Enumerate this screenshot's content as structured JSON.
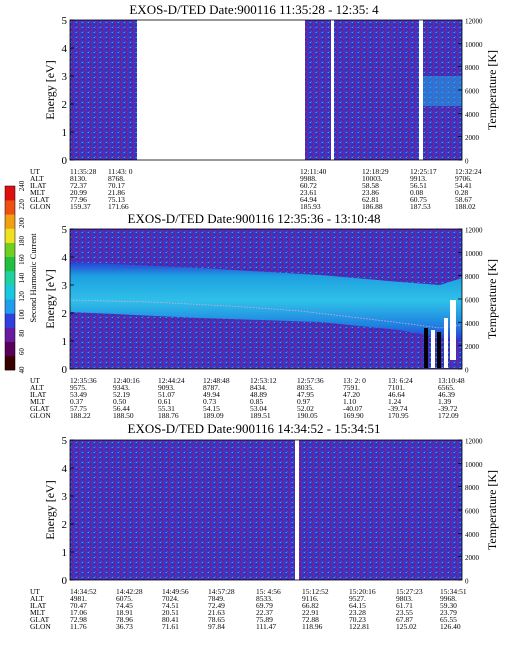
{
  "chart_data": [
    {
      "type": "heatmap",
      "title": "EXOS-D/TED   Date:900116  11:35:28 - 12:35: 4",
      "ylabel": "Energy [eV]",
      "y2label": "Temperature [K]",
      "ylim": [
        0,
        5
      ],
      "y2lim": [
        0,
        12000
      ],
      "yticks": [
        "0",
        "1",
        "2",
        "3",
        "4",
        "5"
      ],
      "y2ticks": [
        "0",
        "2000",
        "4000",
        "6000",
        "8000",
        "10000",
        "12000"
      ],
      "orbit_labels": [
        "UT",
        "ALT",
        "ILAT",
        "MLT",
        "GLAT",
        "GLON"
      ],
      "orbit_columns": [
        [
          "11:35:28",
          "8130.",
          "72.37",
          "20.99",
          "77.96",
          "159.37"
        ],
        [
          "11:43: 0",
          "8768.",
          "70.17",
          "21.86",
          "75.13",
          "171.66"
        ],
        [
          "12:11:40",
          "9988.",
          "60.72",
          "23.61",
          "64.94",
          "185.93"
        ],
        [
          "12:18:29",
          "10003.",
          "58.58",
          "23.86",
          "62.81",
          "186.88"
        ],
        [
          "12:25:17",
          "9913.",
          "56.51",
          "0.08",
          "60.75",
          "187.53"
        ],
        [
          "12:32:24",
          "9706.",
          "54.41",
          "0.28",
          "58.67",
          "188.02"
        ]
      ]
    },
    {
      "type": "heatmap",
      "title": "EXOS-D/TED   Date:900116  12:35:36 - 13:10:48",
      "ylabel": "Energy [eV]",
      "y2label": "Temperature [K]",
      "ylim": [
        0,
        5
      ],
      "y2lim": [
        0,
        12000
      ],
      "yticks": [
        "0",
        "1",
        "2",
        "3",
        "4",
        "5"
      ],
      "y2ticks": [
        "0",
        "2000",
        "4000",
        "6000",
        "8000",
        "10000",
        "12000"
      ],
      "colorbar": {
        "label": "Second Harmonic Current",
        "ticks": [
          "40",
          "60",
          "80",
          "100",
          "120",
          "140",
          "160",
          "180",
          "200",
          "220",
          "240"
        ]
      },
      "orbit_labels": [
        "UT",
        "ALT",
        "ILAT",
        "MLT",
        "GLAT",
        "GLON"
      ],
      "orbit_columns": [
        [
          "12:35:36",
          "9575.",
          "53.49",
          "0.37",
          "57.75",
          "188.22"
        ],
        [
          "12:40:16",
          "9343.",
          "52.19",
          "0.50",
          "56.44",
          "188.50"
        ],
        [
          "12:44:24",
          "9093.",
          "51.07",
          "0.61",
          "55.31",
          "188.76"
        ],
        [
          "12:48:48",
          "8787.",
          "49.94",
          "0.73",
          "54.15",
          "189.09"
        ],
        [
          "12:53:12",
          "8434.",
          "48.89",
          "0.85",
          "53.04",
          "189.51"
        ],
        [
          "12:57:36",
          "8035.",
          "47.95",
          "0.97",
          "52.02",
          "190.05"
        ],
        [
          "13: 2: 0",
          "7591.",
          "47.20",
          "1.10",
          "-40.07",
          "169.90"
        ],
        [
          "13: 6:24",
          "7101.",
          "46.64",
          "1.24",
          "-39.74",
          "170.95"
        ],
        [
          "13:10:48",
          "6565.",
          "46.39",
          "1.39",
          "-39.72",
          "172.09"
        ]
      ]
    },
    {
      "type": "heatmap",
      "title": "EXOS-D/TED   Date:900116  14:34:52 - 15:34:51",
      "ylabel": "Energy [eV]",
      "y2label": "Temperature [K]",
      "ylim": [
        0,
        5
      ],
      "y2lim": [
        0,
        12000
      ],
      "yticks": [
        "0",
        "1",
        "2",
        "3",
        "4",
        "5"
      ],
      "y2ticks": [
        "0",
        "2000",
        "4000",
        "6000",
        "8000",
        "10000",
        "12000"
      ],
      "orbit_labels": [
        "UT",
        "ALT",
        "ILAT",
        "MLT",
        "GLAT",
        "GLON"
      ],
      "orbit_columns": [
        [
          "14:34:52",
          "4981.",
          "70.47",
          "17.06",
          "72.98",
          "11.76"
        ],
        [
          "14:42:28",
          "6075.",
          "74.45",
          "18.91",
          "78.96",
          "36.73"
        ],
        [
          "14:49:56",
          "7024.",
          "74.51",
          "20.51",
          "80.41",
          "71.61"
        ],
        [
          "14:57:28",
          "7849.",
          "72.49",
          "21.63",
          "78.65",
          "97.84"
        ],
        [
          "15: 4:56",
          "8533.",
          "69.79",
          "22.37",
          "75.89",
          "111.47"
        ],
        [
          "15:12:52",
          "9116.",
          "66.82",
          "22.91",
          "72.88",
          "118.96"
        ],
        [
          "15:20:16",
          "9527.",
          "64.15",
          "23.28",
          "70.23",
          "122.81"
        ],
        [
          "15:27:23",
          "9803.",
          "61.71",
          "23.55",
          "67.87",
          "125.02"
        ],
        [
          "15:34:51",
          "9968.",
          "59.30",
          "23.79",
          "65.55",
          "126.40"
        ]
      ]
    }
  ]
}
